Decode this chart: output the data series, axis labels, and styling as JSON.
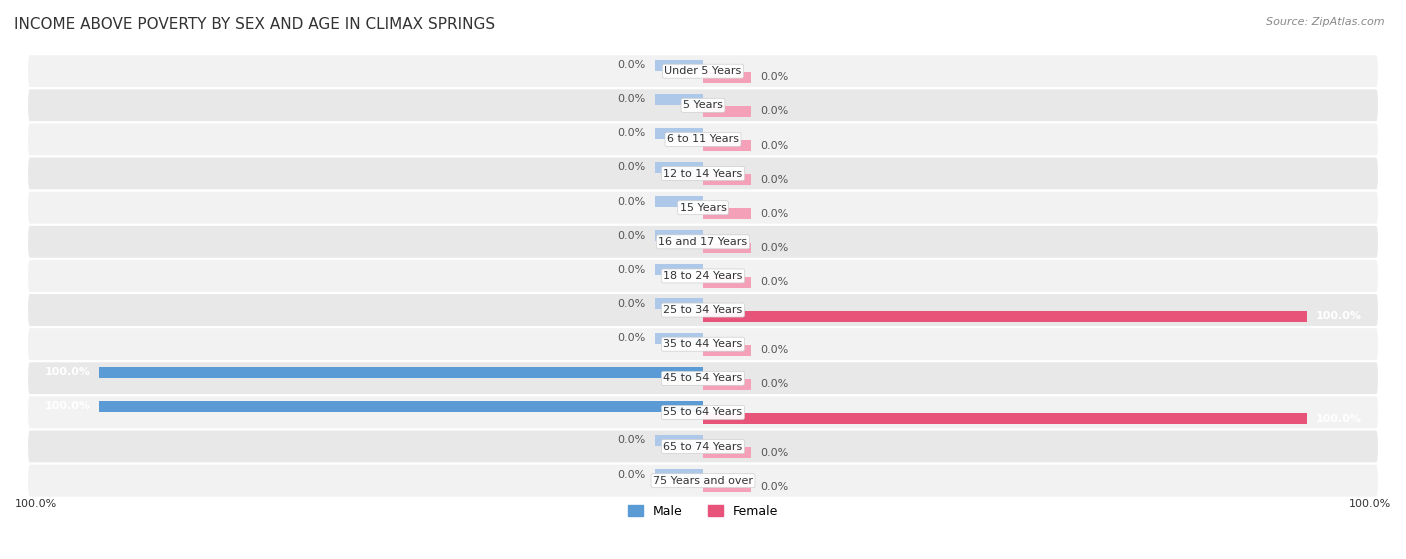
{
  "title": "INCOME ABOVE POVERTY BY SEX AND AGE IN CLIMAX SPRINGS",
  "source": "Source: ZipAtlas.com",
  "categories": [
    "Under 5 Years",
    "5 Years",
    "6 to 11 Years",
    "12 to 14 Years",
    "15 Years",
    "16 and 17 Years",
    "18 to 24 Years",
    "25 to 34 Years",
    "35 to 44 Years",
    "45 to 54 Years",
    "55 to 64 Years",
    "65 to 74 Years",
    "75 Years and over"
  ],
  "male_values": [
    0.0,
    0.0,
    0.0,
    0.0,
    0.0,
    0.0,
    0.0,
    0.0,
    0.0,
    100.0,
    100.0,
    0.0,
    0.0
  ],
  "female_values": [
    0.0,
    0.0,
    0.0,
    0.0,
    0.0,
    0.0,
    0.0,
    100.0,
    0.0,
    0.0,
    100.0,
    0.0,
    0.0
  ],
  "male_color_full": "#5b9bd5",
  "male_color_stub": "#adc8e8",
  "female_color_full": "#e8537a",
  "female_color_stub": "#f4a0b8",
  "row_bg_light": "#f2f2f2",
  "row_bg_dark": "#e8e8e8",
  "max_value": 100.0,
  "stub_value": 8.0,
  "bar_height": 0.32,
  "bar_gap": 0.04,
  "xlim": 100.0,
  "title_fontsize": 11,
  "label_fontsize": 8,
  "category_fontsize": 8,
  "legend_fontsize": 9,
  "source_fontsize": 8
}
